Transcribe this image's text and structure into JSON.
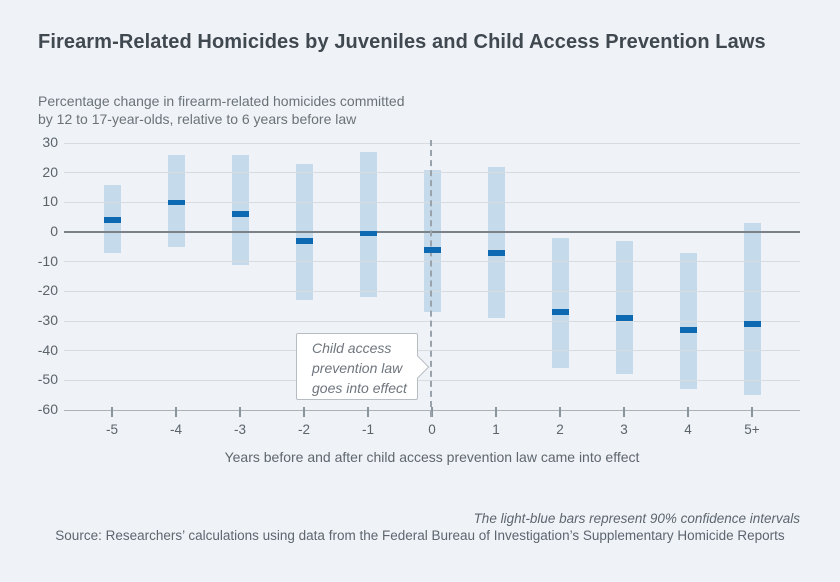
{
  "page": {
    "background": "#eff3f7"
  },
  "header": {
    "title": "Firearm-Related Homicides by Juveniles and Child Access Prevention Laws",
    "subtitle_line1": "Percentage change in firearm-related homicides committed",
    "subtitle_line2": "by 12 to 17-year-olds, relative to 6 years before law"
  },
  "chart_data": {
    "type": "bar",
    "subtype": "confidence-interval-ranges-with-point-estimates",
    "title": "Firearm-Related Homicides by Juveniles and Child Access Prevention Laws",
    "xlabel": "Years before and after child access prevention law came into effect",
    "ylabel": "Percentage change in firearm-related homicides committed by 12 to 17-year-olds, relative to 6 years before law",
    "categories": [
      "-5",
      "-4",
      "-3",
      "-2",
      "-1",
      "0",
      "1",
      "2",
      "3",
      "4",
      "5+"
    ],
    "series": [
      {
        "name": "90% confidence interval",
        "role": "range",
        "low": [
          -7,
          -5,
          -11,
          -23,
          -22,
          -27,
          -29,
          -46,
          -48,
          -53,
          -55
        ],
        "high": [
          16,
          26,
          26,
          23,
          27,
          21,
          22,
          -2,
          -3,
          -7,
          3
        ]
      },
      {
        "name": "Point estimate",
        "role": "point",
        "values": [
          4,
          10,
          6,
          -3,
          -0.5,
          -6,
          -7,
          -27,
          -29,
          -33,
          -31
        ]
      }
    ],
    "ylim": [
      -60,
      30
    ],
    "yticks": [
      30,
      20,
      10,
      0,
      -10,
      -20,
      -30,
      -40,
      -50,
      -60
    ],
    "grid": true,
    "legend_position": "none",
    "event_line": {
      "category": "0",
      "style": "dashed"
    },
    "annotation": {
      "lines": [
        "Child access",
        "prevention law",
        "goes into effect"
      ]
    },
    "colors": {
      "ci_bar": "#c5daea",
      "point_estimate": "#0d6ab2",
      "zero_line": "#7a8288",
      "gridline": "#d8dce0",
      "axis_line": "#aab2b8",
      "event_line": "#9aa3ab",
      "background": "#eff3f7",
      "title_text": "#404850",
      "label_text": "#5b636b"
    }
  },
  "footer": {
    "note": "The light-blue bars represent 90% confidence intervals",
    "source": "Source: Researchers’ calculations using data from the Federal Bureau of Investigation’s Supplementary Homicide Reports"
  }
}
